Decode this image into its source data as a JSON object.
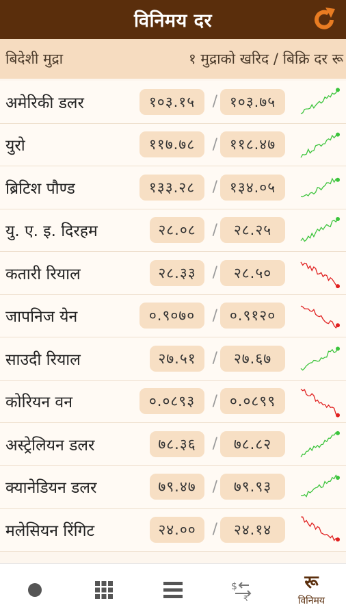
{
  "app_bar": {
    "title": "विनिमय दर",
    "refresh_icon": "refresh-icon",
    "accent": "#e87c22",
    "background": "#5a2e0c"
  },
  "header": {
    "left": "बिदेशी मुद्रा",
    "right": "१ मुद्राको खरिद / बिक्रि दर रू"
  },
  "rates": [
    {
      "name": "अमेरिकी डलर",
      "buy": "१०३.१५",
      "sell": "१०३.७५",
      "trend": "up",
      "trend_color": "#3cc43c"
    },
    {
      "name": "युरो",
      "buy": "११७.७८",
      "sell": "११८.४७",
      "trend": "up",
      "trend_color": "#3cc43c"
    },
    {
      "name": "ब्रिटिश पौण्ड",
      "buy": "१३३.२८",
      "sell": "१३४.०५",
      "trend": "up",
      "trend_color": "#3cc43c"
    },
    {
      "name": "यु. ए. इ. दिरहम",
      "buy": "२८.०८",
      "sell": "२८.२५",
      "trend": "up",
      "trend_color": "#3cc43c"
    },
    {
      "name": "कतारी रियाल",
      "buy": "२८.३३",
      "sell": "२८.५०",
      "trend": "down",
      "trend_color": "#e02020"
    },
    {
      "name": "जापनिज येन",
      "buy": "०.९०७०",
      "sell": "०.९१२०",
      "trend": "down",
      "trend_color": "#e02020"
    },
    {
      "name": "साउदी रियाल",
      "buy": "२७.५१",
      "sell": "२७.६७",
      "trend": "up",
      "trend_color": "#3cc43c"
    },
    {
      "name": "कोरियन वन",
      "buy": "०.०८९३",
      "sell": "०.०८९९",
      "trend": "down",
      "trend_color": "#e02020"
    },
    {
      "name": "अस्ट्रेलियन डलर",
      "buy": "७८.३६",
      "sell": "७८.८२",
      "trend": "up",
      "trend_color": "#3cc43c"
    },
    {
      "name": "क्यानेडियन डलर",
      "buy": "७९.४७",
      "sell": "७९.९३",
      "trend": "up",
      "trend_color": "#3cc43c"
    },
    {
      "name": "मलेसियन रिंगिट",
      "buy": "२४.००",
      "sell": "२४.१४",
      "trend": "down",
      "trend_color": "#e02020"
    }
  ],
  "bottom_nav": {
    "items": [
      {
        "icon": "dot-icon",
        "label": ""
      },
      {
        "icon": "grid-icon",
        "label": ""
      },
      {
        "icon": "menu-icon",
        "label": ""
      },
      {
        "icon": "convert-icon",
        "label": ""
      },
      {
        "icon": "rupee-icon",
        "label": "विनिमय",
        "glyph": "रू",
        "active": true
      }
    ]
  }
}
